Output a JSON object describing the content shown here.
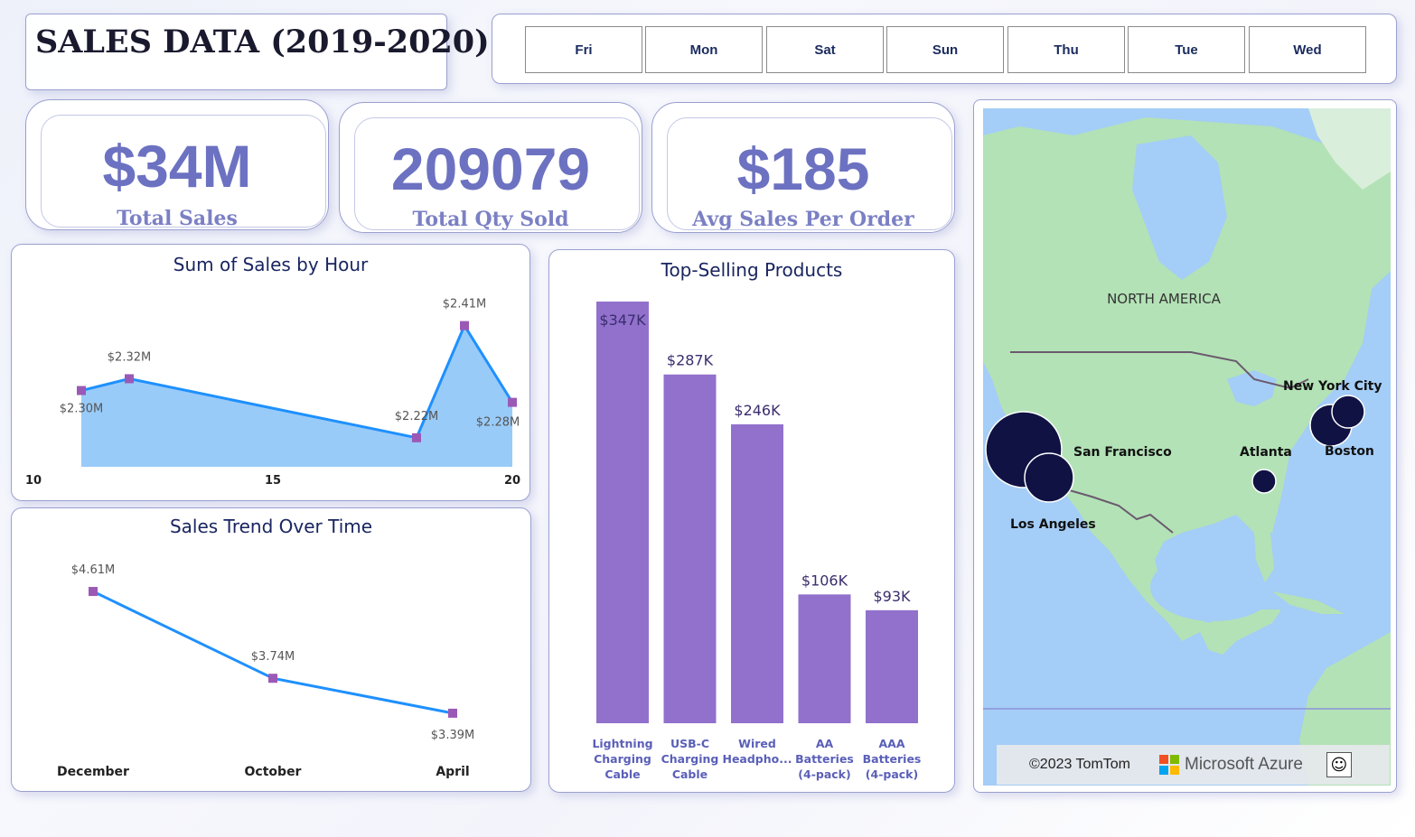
{
  "header": {
    "title": "SALES DATA (2019-2020)"
  },
  "day_slicer": {
    "days": [
      "Fri",
      "Mon",
      "Sat",
      "Sun",
      "Thu",
      "Tue",
      "Wed"
    ]
  },
  "kpis": {
    "total_sales": {
      "value": "$34M",
      "label": "Total Sales"
    },
    "total_qty": {
      "value": "209079",
      "label": "Total Qty Sold"
    },
    "avg_sales": {
      "value": "$185",
      "label": "Avg Sales Per Order"
    }
  },
  "colors": {
    "accent": "#6c72c1",
    "line": "#1e90ff",
    "area": "#8ec5f7",
    "marker": "#9b59b6",
    "bar": "#9171cc",
    "map_bubble": "#0f1242",
    "water": "#a4cdf7",
    "land": "#b3e2b6"
  },
  "chart_data": [
    {
      "id": "sales_by_hour",
      "type": "area",
      "title": "Sum of Sales by Hour",
      "xlim": [
        10,
        20
      ],
      "x_ticks": [
        "10",
        "15",
        "20"
      ],
      "x": [
        11,
        12,
        18,
        19,
        20
      ],
      "values": [
        2.3,
        2.32,
        2.22,
        2.41,
        2.28
      ],
      "data_labels": [
        "$2.30M",
        "$2.32M",
        "$2.22M",
        "$2.41M",
        "$2.28M"
      ],
      "ylim": [
        2.18,
        2.44
      ],
      "grid": false
    },
    {
      "id": "sales_trend",
      "type": "line",
      "title": "Sales Trend Over Time",
      "categories": [
        "December",
        "October",
        "April"
      ],
      "values": [
        4.61,
        3.74,
        3.39
      ],
      "data_labels": [
        "$4.61M",
        "$3.74M",
        "$3.39M"
      ],
      "ylim": [
        3.0,
        4.9
      ]
    },
    {
      "id": "top_products",
      "type": "bar",
      "title": "Top-Selling Products",
      "categories": [
        [
          "Lightning",
          "Charging",
          "Cable"
        ],
        [
          "USB-C",
          "Charging",
          "Cable"
        ],
        [
          "Wired",
          "Headpho..."
        ],
        [
          "AA",
          "Batteries",
          "(4-pack)"
        ],
        [
          "AAA",
          "Batteries",
          "(4-pack)"
        ]
      ],
      "values": [
        347,
        287,
        246,
        106,
        93
      ],
      "data_labels": [
        "$347K",
        "$287K",
        "$246K",
        "$106K",
        "$93K"
      ],
      "ylim": [
        0,
        347
      ]
    }
  ],
  "map": {
    "region_label": "NORTH AMERICA",
    "cities": [
      {
        "name": "San Francisco",
        "size": "large"
      },
      {
        "name": "Los Angeles",
        "size": "medium"
      },
      {
        "name": "New York City",
        "size": "medium"
      },
      {
        "name": "Boston",
        "size": "small"
      },
      {
        "name": "Atlanta",
        "size": "small"
      }
    ],
    "copyright": "©2023 TomTom",
    "provider": "Microsoft Azure",
    "feedback_icon": "smiley-icon"
  }
}
